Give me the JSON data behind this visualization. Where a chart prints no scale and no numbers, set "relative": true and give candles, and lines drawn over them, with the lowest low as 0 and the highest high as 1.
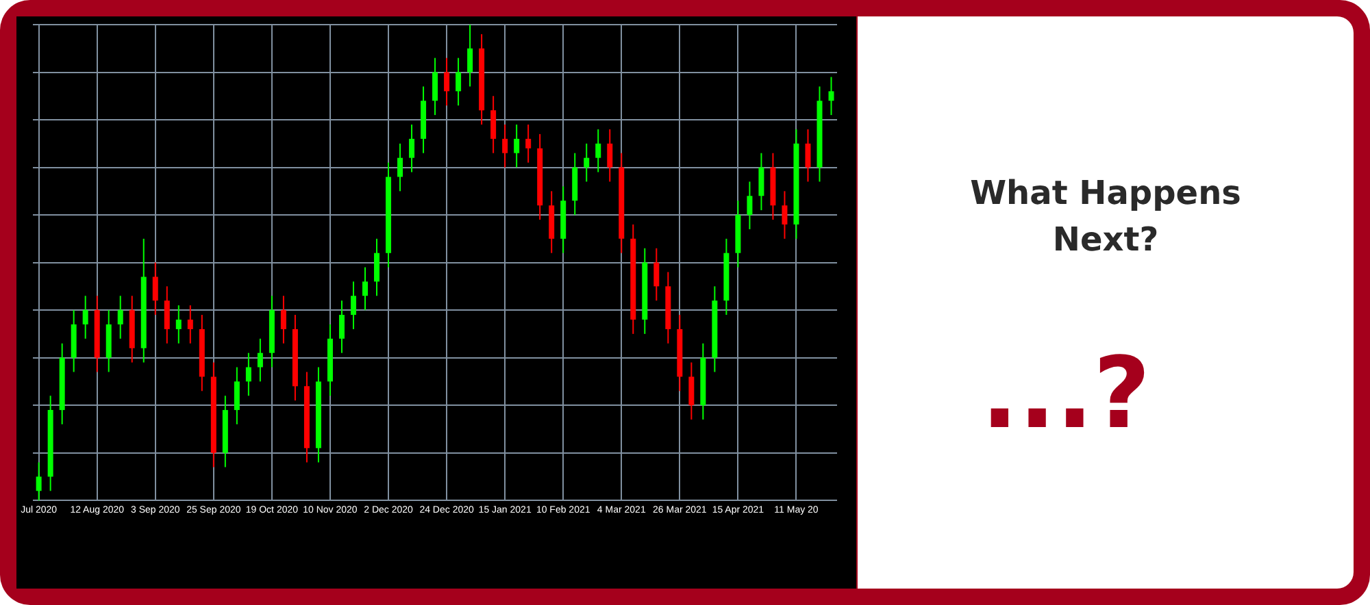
{
  "chart_data": {
    "type": "candlestick",
    "relative": true,
    "title": "What Happens Next?",
    "annotations": [
      "...?"
    ],
    "grid": true,
    "legend": false,
    "tick_labels": "x",
    "categories": [
      "Jul 2020",
      null,
      null,
      null,
      null,
      "12 Aug 2020",
      null,
      null,
      null,
      null,
      "3 Sep 2020",
      null,
      null,
      null,
      null,
      "25 Sep 2020",
      null,
      null,
      null,
      null,
      "19 Oct 2020",
      null,
      null,
      null,
      null,
      "10 Nov 2020",
      null,
      null,
      null,
      null,
      "2 Dec 2020",
      null,
      null,
      null,
      null,
      "24 Dec 2020",
      null,
      null,
      null,
      null,
      "15 Jan 2021",
      null,
      null,
      null,
      null,
      "10 Feb 2021",
      null,
      null,
      null,
      null,
      "4 Mar 2021",
      null,
      null,
      null,
      null,
      "26 Mar 2021",
      null,
      null,
      null,
      null,
      "15 Apr 2021",
      null,
      null,
      null,
      null,
      "11 May 20",
      null,
      null,
      null
    ],
    "ohlc": [
      [
        0.02,
        0.08,
        0,
        0.05
      ],
      [
        0.05,
        0.22,
        0.02,
        0.19
      ],
      [
        0.19,
        0.33,
        0.16,
        0.3
      ],
      [
        0.3,
        0.4,
        0.27,
        0.37
      ],
      [
        0.37,
        0.43,
        0.34,
        0.4
      ],
      [
        0.4,
        0.43,
        0.27,
        0.3
      ],
      [
        0.3,
        0.4,
        0.27,
        0.37
      ],
      [
        0.37,
        0.43,
        0.34,
        0.4
      ],
      [
        0.4,
        0.43,
        0.29,
        0.32
      ],
      [
        0.32,
        0.55,
        0.29,
        0.47
      ],
      [
        0.47,
        0.5,
        0.39,
        0.42
      ],
      [
        0.42,
        0.45,
        0.33,
        0.36
      ],
      [
        0.36,
        0.41,
        0.33,
        0.38
      ],
      [
        0.38,
        0.41,
        0.33,
        0.36
      ],
      [
        0.36,
        0.39,
        0.23,
        0.26
      ],
      [
        0.26,
        0.29,
        0.07,
        0.1
      ],
      [
        0.1,
        0.22,
        0.07,
        0.19
      ],
      [
        0.19,
        0.28,
        0.16,
        0.25
      ],
      [
        0.25,
        0.31,
        0.22,
        0.28
      ],
      [
        0.28,
        0.34,
        0.25,
        0.31
      ],
      [
        0.31,
        0.43,
        0.28,
        0.4
      ],
      [
        0.4,
        0.43,
        0.33,
        0.36
      ],
      [
        0.36,
        0.39,
        0.21,
        0.24
      ],
      [
        0.24,
        0.27,
        0.08,
        0.11
      ],
      [
        0.11,
        0.28,
        0.08,
        0.25
      ],
      [
        0.25,
        0.37,
        0.22,
        0.34
      ],
      [
        0.34,
        0.42,
        0.31,
        0.39
      ],
      [
        0.39,
        0.46,
        0.36,
        0.43
      ],
      [
        0.43,
        0.49,
        0.4,
        0.46
      ],
      [
        0.46,
        0.55,
        0.43,
        0.52
      ],
      [
        0.52,
        0.71,
        0.49,
        0.68
      ],
      [
        0.68,
        0.75,
        0.65,
        0.72
      ],
      [
        0.72,
        0.79,
        0.69,
        0.76
      ],
      [
        0.76,
        0.87,
        0.73,
        0.84
      ],
      [
        0.84,
        0.93,
        0.81,
        0.9
      ],
      [
        0.9,
        0.93,
        0.83,
        0.86
      ],
      [
        0.86,
        0.93,
        0.83,
        0.9
      ],
      [
        0.9,
        1,
        0.87,
        0.95
      ],
      [
        0.95,
        0.98,
        0.79,
        0.82
      ],
      [
        0.82,
        0.85,
        0.73,
        0.76
      ],
      [
        0.76,
        0.79,
        0.7,
        0.73
      ],
      [
        0.73,
        0.79,
        0.7,
        0.76
      ],
      [
        0.76,
        0.79,
        0.71,
        0.74
      ],
      [
        0.74,
        0.77,
        0.59,
        0.62
      ],
      [
        0.62,
        0.65,
        0.52,
        0.55
      ],
      [
        0.55,
        0.66,
        0.52,
        0.63
      ],
      [
        0.63,
        0.73,
        0.6,
        0.7
      ],
      [
        0.7,
        0.75,
        0.67,
        0.72
      ],
      [
        0.72,
        0.78,
        0.69,
        0.75
      ],
      [
        0.75,
        0.78,
        0.67,
        0.7
      ],
      [
        0.7,
        0.73,
        0.52,
        0.55
      ],
      [
        0.55,
        0.58,
        0.35,
        0.38
      ],
      [
        0.38,
        0.53,
        0.35,
        0.5
      ],
      [
        0.5,
        0.53,
        0.42,
        0.45
      ],
      [
        0.45,
        0.48,
        0.33,
        0.36
      ],
      [
        0.36,
        0.39,
        0.23,
        0.26
      ],
      [
        0.26,
        0.29,
        0.17,
        0.2
      ],
      [
        0.2,
        0.33,
        0.17,
        0.3
      ],
      [
        0.3,
        0.45,
        0.27,
        0.42
      ],
      [
        0.42,
        0.55,
        0.39,
        0.52
      ],
      [
        0.52,
        0.63,
        0.49,
        0.6
      ],
      [
        0.6,
        0.67,
        0.57,
        0.64
      ],
      [
        0.64,
        0.73,
        0.61,
        0.7
      ],
      [
        0.7,
        0.73,
        0.59,
        0.62
      ],
      [
        0.62,
        0.65,
        0.55,
        0.58
      ],
      [
        0.58,
        0.78,
        0.55,
        0.75
      ],
      [
        0.75,
        0.78,
        0.67,
        0.7
      ],
      [
        0.7,
        0.87,
        0.67,
        0.84
      ],
      [
        0.84,
        0.89,
        0.81,
        0.86
      ]
    ],
    "colors": [
      "#00ff00",
      "#00ff00",
      "#00ff00",
      "#00ff00",
      "#00ff00",
      "#ff0000",
      "#00ff00",
      "#00ff00",
      "#ff0000",
      "#00ff00",
      "#ff0000",
      "#ff0000",
      "#00ff00",
      "#ff0000",
      "#ff0000",
      "#ff0000",
      "#00ff00",
      "#00ff00",
      "#00ff00",
      "#00ff00",
      "#00ff00",
      "#ff0000",
      "#ff0000",
      "#ff0000",
      "#00ff00",
      "#00ff00",
      "#00ff00",
      "#00ff00",
      "#00ff00",
      "#00ff00",
      "#00ff00",
      "#00ff00",
      "#00ff00",
      "#00ff00",
      "#00ff00",
      "#ff0000",
      "#00ff00",
      "#00ff00",
      "#ff0000",
      "#ff0000",
      "#ff0000",
      "#00ff00",
      "#ff0000",
      "#ff0000",
      "#ff0000",
      "#00ff00",
      "#00ff00",
      "#00ff00",
      "#00ff00",
      "#ff0000",
      "#ff0000",
      "#ff0000",
      "#00ff00",
      "#ff0000",
      "#ff0000",
      "#ff0000",
      "#ff0000",
      "#00ff00",
      "#00ff00",
      "#00ff00",
      "#00ff00",
      "#00ff00",
      "#00ff00",
      "#ff0000",
      "#ff0000",
      "#00ff00",
      "#ff0000",
      "#00ff00",
      "#00ff00"
    ]
  }
}
